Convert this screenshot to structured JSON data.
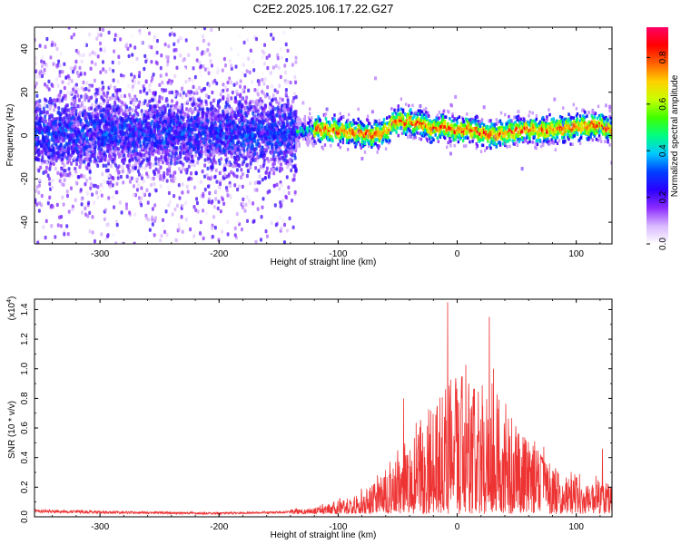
{
  "title": "C2E2.2025.106.17.22.G27",
  "chart_data": [
    {
      "type": "heatmap",
      "xlabel": "Height of straight line (km)",
      "ylabel": "Frequency (Hz)",
      "xlim": [
        -355,
        130
      ],
      "ylim": [
        -50,
        50
      ],
      "xticks": [
        -300,
        -200,
        -100,
        0,
        100
      ],
      "yticks": [
        -40,
        -20,
        0,
        20,
        40
      ],
      "grid": false,
      "colorbar": {
        "label": "Normalized spectral amplitude",
        "range": [
          0,
          0.93
        ],
        "ticks": [
          "0.0",
          "0.2",
          "0.4",
          "0.6",
          "0.8"
        ],
        "colormap": [
          "#ffffff",
          "#d9b8ff",
          "#8c2bff",
          "#2a00ff",
          "#0040ff",
          "#00c8ff",
          "#00ff80",
          "#40ff00",
          "#c8ff00",
          "#ffd000",
          "#ff6000",
          "#ff0000",
          "#ff0066"
        ]
      },
      "ridge": {
        "x": [
          -135,
          -120,
          -100,
          -80,
          -70,
          -60,
          -55,
          -50,
          -45,
          -40,
          -35,
          -30,
          -25,
          -20,
          -10,
          0,
          10,
          20,
          30,
          40,
          50,
          60,
          70,
          80,
          90,
          100,
          110,
          120,
          130
        ],
        "y": [
          2,
          3,
          2,
          1,
          0,
          2,
          5,
          7,
          6,
          7,
          5,
          6,
          4,
          3,
          4,
          2,
          3,
          1,
          0,
          1,
          2,
          3,
          2,
          3,
          3,
          4,
          4,
          5,
          2
        ]
      },
      "noise_region": {
        "x": [
          -355,
          -135
        ],
        "y_center": 1,
        "spread": 30
      }
    },
    {
      "type": "line",
      "xlabel": "Height of straight line (km)",
      "ylabel": "SNR (10 * v/v)",
      "scale_label": "(x10",
      "scale_exponent": "4",
      "scale_close": ")",
      "xlim": [
        -355,
        130
      ],
      "ylim": [
        0,
        1.47
      ],
      "xticks": [
        -300,
        -200,
        -100,
        0,
        100
      ],
      "yticks": [
        "0.0",
        "0.2",
        "0.4",
        "0.6",
        "0.8",
        "1.0",
        "1.2",
        "1.4"
      ],
      "color": "#ee3333",
      "grid": false,
      "envelope": {
        "x": [
          -355,
          -300,
          -200,
          -140,
          -120,
          -100,
          -90,
          -80,
          -70,
          -60,
          -50,
          -40,
          -30,
          -20,
          -10,
          0,
          10,
          20,
          30,
          40,
          50,
          60,
          70,
          80,
          90,
          100,
          110,
          120,
          130
        ],
        "y": [
          0.05,
          0.04,
          0.03,
          0.04,
          0.05,
          0.12,
          0.14,
          0.18,
          0.25,
          0.3,
          0.45,
          0.6,
          0.72,
          0.85,
          1.0,
          1.15,
          1.05,
          0.95,
          1.0,
          0.9,
          0.7,
          0.6,
          0.48,
          0.4,
          0.32,
          0.35,
          0.25,
          0.28,
          0.22
        ]
      },
      "peaks": [
        {
          "x": -8,
          "y": 1.45
        },
        {
          "x": 27,
          "y": 1.35
        },
        {
          "x": -45,
          "y": 0.8
        },
        {
          "x": 122,
          "y": 0.46
        }
      ]
    }
  ]
}
